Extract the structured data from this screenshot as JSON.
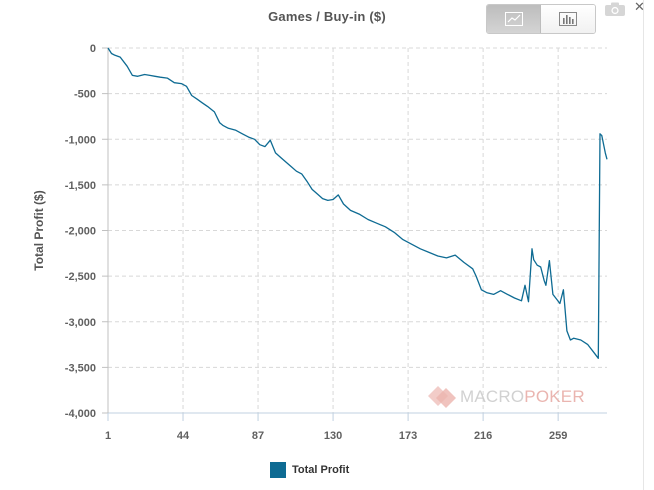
{
  "title": "Games / Buy-in ($)",
  "toolbar": {
    "line_view_icon": "line-chart-icon",
    "bar_view_icon": "bar-chart-icon",
    "camera_icon": "camera-icon",
    "close_label": "✕"
  },
  "watermark": {
    "prefix": "MACRO",
    "suffix": "POKER",
    "logo_icon": "diamond-logo-icon"
  },
  "legend": {
    "label": "Total Profit",
    "color": "#0e6b93"
  },
  "chart_data": {
    "type": "line",
    "title": "Games / Buy-in ($)",
    "xlabel": "",
    "ylabel": "Total Profit ($)",
    "x_ticks": [
      1,
      44,
      87,
      130,
      173,
      216,
      259
    ],
    "y_ticks": [
      0,
      -500,
      -1000,
      -1500,
      -2000,
      -2500,
      -3000,
      -3500,
      -4000
    ],
    "y_tick_labels": [
      "0",
      "-500",
      "-1,000",
      "-1,500",
      "-2,000",
      "-2,500",
      "-3,000",
      "-3,500",
      "-4,000"
    ],
    "xlim": [
      1,
      287
    ],
    "ylim": [
      -4000,
      0
    ],
    "grid": true,
    "legend_position": "bottom-center",
    "series": [
      {
        "name": "Total Profit",
        "color": "#0e6b93",
        "x": [
          1,
          3,
          5,
          8,
          12,
          15,
          18,
          22,
          25,
          28,
          31,
          35,
          39,
          43,
          46,
          49,
          52,
          55,
          58,
          62,
          65,
          67,
          70,
          74,
          78,
          82,
          85,
          88,
          91,
          94,
          97,
          100,
          103,
          106,
          109,
          112,
          115,
          118,
          121,
          124,
          127,
          130,
          133,
          136,
          140,
          145,
          150,
          155,
          160,
          165,
          170,
          175,
          180,
          185,
          190,
          195,
          200,
          205,
          210,
          212,
          215,
          218,
          222,
          226,
          230,
          234,
          238,
          240,
          242,
          244,
          245,
          247,
          249,
          251,
          252,
          254,
          256,
          258,
          260,
          262,
          264,
          266,
          268,
          272,
          276,
          280,
          282,
          283,
          284,
          286,
          287
        ],
        "y": [
          0,
          -60,
          -80,
          -100,
          -200,
          -300,
          -310,
          -290,
          -300,
          -310,
          -320,
          -330,
          -380,
          -390,
          -420,
          -520,
          -560,
          -600,
          -640,
          -700,
          -820,
          -850,
          -880,
          -900,
          -940,
          -980,
          -1000,
          -1060,
          -1080,
          -1010,
          -1150,
          -1200,
          -1250,
          -1300,
          -1350,
          -1380,
          -1460,
          -1550,
          -1600,
          -1650,
          -1670,
          -1660,
          -1610,
          -1710,
          -1780,
          -1820,
          -1880,
          -1920,
          -1960,
          -2020,
          -2100,
          -2150,
          -2200,
          -2240,
          -2280,
          -2300,
          -2270,
          -2350,
          -2420,
          -2500,
          -2650,
          -2680,
          -2700,
          -2660,
          -2700,
          -2740,
          -2770,
          -2600,
          -2780,
          -2200,
          -2320,
          -2380,
          -2400,
          -2550,
          -2600,
          -2330,
          -2700,
          -2750,
          -2800,
          -2650,
          -3100,
          -3200,
          -3180,
          -3200,
          -3250,
          -3350,
          -3400,
          -940,
          -960,
          -1150,
          -1220
        ]
      }
    ]
  }
}
